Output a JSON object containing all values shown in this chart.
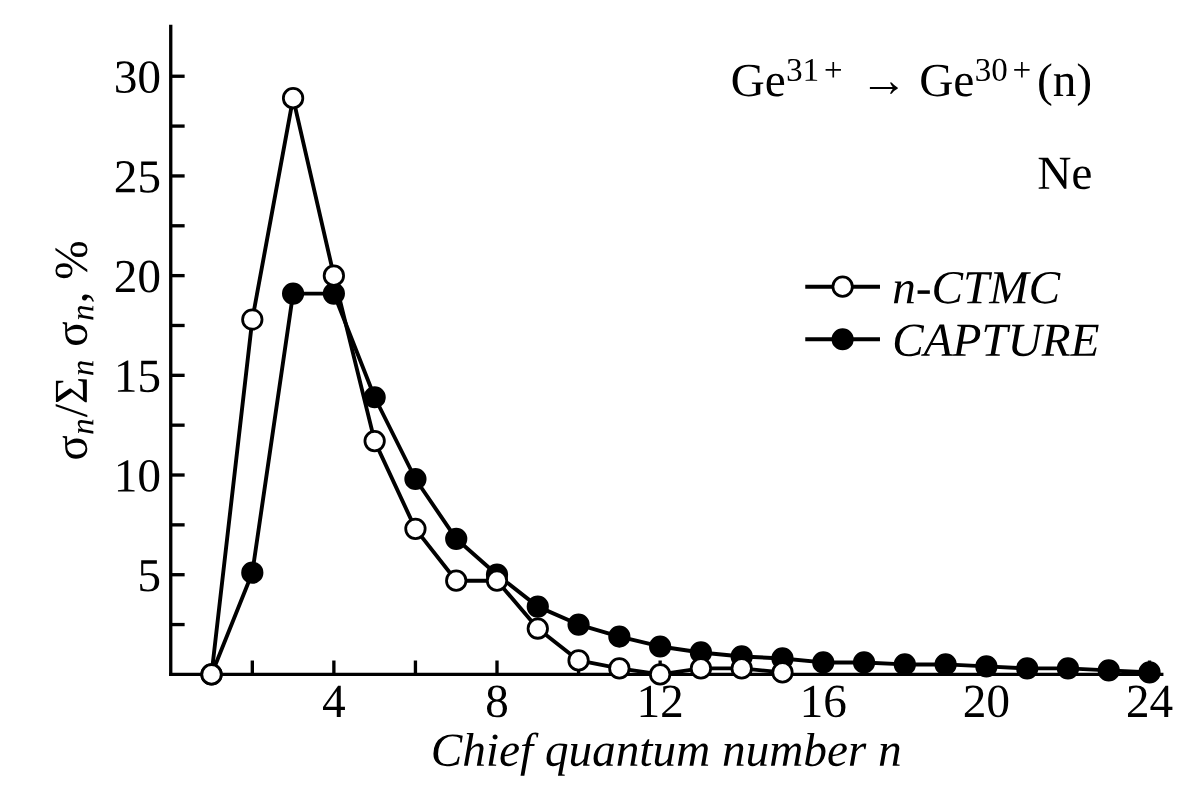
{
  "chart_data": {
    "type": "line",
    "xlabel": "Chief quantum number n",
    "ylabel": "σ$_{n}$/Σ$_{n}$ σ$_{n}$, %",
    "annotations": [
      "Ge$^{31+}$ → Ge$^{30+}$(n)",
      "Ne"
    ],
    "series": [
      {
        "name": "n-CTMC",
        "color": "#ffffff",
        "x": [
          1,
          2,
          3,
          4,
          5,
          6,
          7,
          8,
          9,
          10,
          11,
          12,
          13,
          14,
          15
        ],
        "values": [
          0,
          17.8,
          28.9,
          20.0,
          11.7,
          7.3,
          4.7,
          4.7,
          2.3,
          0.7,
          0.3,
          0,
          0.3,
          0.3,
          0.1
        ]
      },
      {
        "name": "CAPTURE",
        "color": "#000000",
        "x": [
          1,
          2,
          3,
          4,
          5,
          6,
          7,
          8,
          9,
          10,
          11,
          12,
          13,
          14,
          15,
          16,
          17,
          18,
          19,
          20,
          21,
          22,
          23,
          24
        ],
        "values": [
          0,
          5.1,
          19.1,
          19.1,
          13.9,
          9.8,
          6.8,
          5.0,
          3.4,
          2.5,
          1.9,
          1.4,
          1.1,
          0.9,
          0.8,
          0.6,
          0.6,
          0.5,
          0.5,
          0.4,
          0.3,
          0.3,
          0.2,
          0.1
        ]
      }
    ],
    "xlim": [
      0,
      24.3
    ],
    "ylim": [
      0,
      32.5
    ],
    "xticks": [
      {
        "value": 2,
        "label": null
      },
      4,
      {
        "value": 6,
        "label": null
      },
      8,
      {
        "value": 10,
        "label": null
      },
      12,
      {
        "value": 14,
        "label": null
      },
      16,
      {
        "value": 18,
        "label": null
      },
      20,
      {
        "value": 22,
        "label": null
      },
      24
    ],
    "yticks": [
      {
        "value": 2.5,
        "label": null
      },
      5,
      {
        "value": 7.5,
        "label": null
      },
      10,
      {
        "value": 12.5,
        "label": null
      },
      15,
      {
        "value": 17.5,
        "label": null
      },
      20,
      {
        "value": 22.5,
        "label": null
      },
      25,
      {
        "value": 27.5,
        "label": null
      },
      30
    ],
    "marker": "circle",
    "line_style": "solid",
    "legend": "right",
    "grid": false
  }
}
